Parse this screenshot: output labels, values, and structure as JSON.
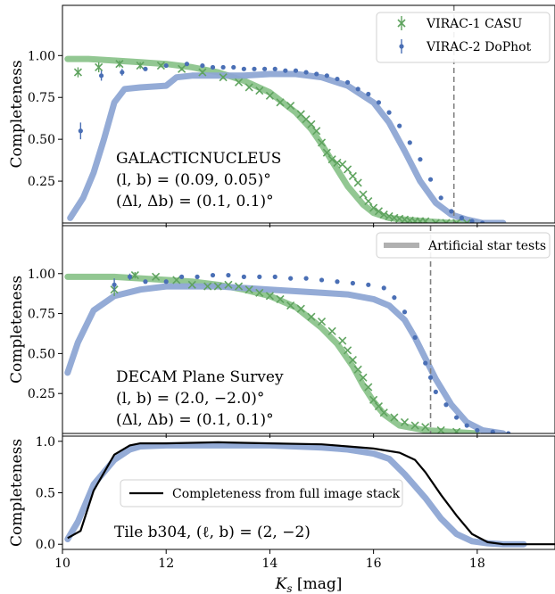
{
  "colors": {
    "casu": "#5fa35f",
    "dophot": "#4a6fb5",
    "ast_green": "#8cc48c",
    "ast_blue": "#8ea7d4",
    "stack": "#000000",
    "legend_gray": "#b0b0b0",
    "dashed_line": "#808080"
  },
  "x_axis": {
    "label_main": "K",
    "label_sub": "s",
    "label_unit": " [mag]",
    "ticks": [
      10,
      12,
      14,
      16,
      18
    ],
    "tick_labels": [
      "10",
      "12",
      "14",
      "16",
      "18"
    ],
    "range": [
      10,
      19.5
    ]
  },
  "chart_data": [
    {
      "type": "scatter",
      "ylabel": "Completeness",
      "ylim": [
        0,
        1.3
      ],
      "yticks": [
        0.25,
        0.5,
        0.75,
        1.0
      ],
      "ytick_labels": [
        "0.25",
        "0.50",
        "0.75",
        "1.00"
      ],
      "annotation": [
        "GALACTICNUCLEUS",
        "(l, b) = (0.09, 0.05)°",
        "(Δl, Δb) = (0.1, 0.1)°"
      ],
      "legend_position": "top-right",
      "legend": [
        {
          "label": "VIRAC-1 CASU",
          "marker": "x"
        },
        {
          "label": "VIRAC-2 DoPhot",
          "marker": "o"
        }
      ],
      "vline": 17.55,
      "series": [
        {
          "name": "VIRAC-1 CASU",
          "marker": "x",
          "x": [
            10.3,
            10.7,
            11.1,
            11.5,
            11.9,
            12.3,
            12.7,
            13.1,
            13.4,
            13.6,
            13.8,
            14.0,
            14.2,
            14.4,
            14.6,
            14.7,
            14.8,
            14.9,
            15.0,
            15.1,
            15.2,
            15.3,
            15.4,
            15.5,
            15.6,
            15.7,
            15.8,
            15.9,
            16.0,
            16.1,
            16.2,
            16.3,
            16.4,
            16.5,
            16.6,
            16.7,
            16.8,
            16.9,
            17.0,
            17.2,
            17.4,
            17.6,
            17.8
          ],
          "y": [
            0.9,
            0.93,
            0.95,
            0.94,
            0.94,
            0.92,
            0.9,
            0.87,
            0.84,
            0.81,
            0.79,
            0.76,
            0.72,
            0.7,
            0.65,
            0.62,
            0.59,
            0.55,
            0.48,
            0.42,
            0.38,
            0.36,
            0.35,
            0.32,
            0.28,
            0.24,
            0.17,
            0.13,
            0.09,
            0.07,
            0.05,
            0.04,
            0.03,
            0.025,
            0.02,
            0.015,
            0.01,
            0.01,
            0.01,
            0.0,
            0.0,
            0.0,
            0.0
          ],
          "yerr": [
            0.03,
            0.03,
            0.02,
            0.02,
            0.01,
            0.01,
            0.01,
            0.01,
            0,
            0,
            0,
            0,
            0,
            0,
            0,
            0,
            0,
            0,
            0,
            0,
            0,
            0,
            0,
            0,
            0,
            0,
            0,
            0,
            0,
            0,
            0,
            0,
            0,
            0,
            0,
            0,
            0,
            0,
            0,
            0,
            0,
            0,
            0
          ]
        },
        {
          "name": "VIRAC-2 DoPhot",
          "marker": "o",
          "x": [
            10.35,
            10.75,
            11.15,
            11.6,
            12.0,
            12.4,
            12.7,
            12.9,
            13.1,
            13.3,
            13.5,
            13.7,
            13.9,
            14.1,
            14.3,
            14.5,
            14.7,
            14.9,
            15.1,
            15.3,
            15.5,
            15.7,
            15.9,
            16.1,
            16.3,
            16.5,
            16.7,
            16.9,
            17.1,
            17.3,
            17.5,
            17.7,
            17.9,
            18.1
          ],
          "y": [
            0.55,
            0.88,
            0.9,
            0.92,
            0.94,
            0.95,
            0.94,
            0.93,
            0.93,
            0.93,
            0.92,
            0.92,
            0.92,
            0.92,
            0.91,
            0.91,
            0.9,
            0.89,
            0.88,
            0.86,
            0.84,
            0.8,
            0.77,
            0.72,
            0.66,
            0.58,
            0.48,
            0.38,
            0.26,
            0.15,
            0.07,
            0.03,
            0.01,
            0.0
          ],
          "yerr": [
            0.05,
            0.03,
            0.02,
            0.01,
            0.01,
            0,
            0,
            0,
            0,
            0,
            0,
            0,
            0,
            0,
            0,
            0,
            0,
            0,
            0,
            0,
            0,
            0,
            0,
            0,
            0,
            0,
            0,
            0,
            0,
            0,
            0,
            0,
            0,
            0
          ]
        }
      ],
      "ast_curves": [
        {
          "color_key": "ast_green",
          "x": [
            10.1,
            10.5,
            11.0,
            11.5,
            12.0,
            12.5,
            13.0,
            13.5,
            14.0,
            14.5,
            14.8,
            15.0,
            15.2,
            15.5,
            15.8,
            16.0,
            16.3,
            16.6,
            17.0,
            17.5,
            18.0
          ],
          "y": [
            0.98,
            0.98,
            0.97,
            0.96,
            0.95,
            0.93,
            0.9,
            0.85,
            0.78,
            0.66,
            0.56,
            0.47,
            0.37,
            0.22,
            0.11,
            0.06,
            0.03,
            0.02,
            0.01,
            0.0,
            0.0
          ]
        },
        {
          "color_key": "ast_blue",
          "x": [
            10.15,
            10.4,
            10.6,
            10.8,
            11.0,
            11.2,
            11.5,
            12.0,
            12.2,
            12.5,
            13.0,
            13.5,
            14.0,
            14.5,
            15.0,
            15.5,
            16.0,
            16.3,
            16.6,
            16.9,
            17.2,
            17.5,
            17.8,
            18.1,
            18.5
          ],
          "y": [
            0.03,
            0.15,
            0.3,
            0.5,
            0.72,
            0.8,
            0.81,
            0.82,
            0.87,
            0.88,
            0.88,
            0.88,
            0.89,
            0.89,
            0.87,
            0.82,
            0.72,
            0.6,
            0.43,
            0.25,
            0.12,
            0.05,
            0.02,
            0.0,
            0.0
          ]
        }
      ]
    },
    {
      "type": "scatter",
      "ylabel": "Completeness",
      "ylim": [
        0,
        1.3
      ],
      "yticks": [
        0.25,
        0.5,
        0.75,
        1.0
      ],
      "ytick_labels": [
        "0.25",
        "0.50",
        "0.75",
        "1.00"
      ],
      "annotation": [
        "DECAM Plane Survey",
        "(l, b) = (2.0, −2.0)°",
        "(Δl, Δb) = (0.1, 0.1)°"
      ],
      "legend_position": "top-right",
      "legend": [
        {
          "label": "Artificial star tests",
          "marker": "line"
        }
      ],
      "vline": 17.1,
      "series": [
        {
          "name": "VIRAC-1 CASU",
          "marker": "x",
          "x": [
            11.0,
            11.4,
            11.8,
            12.2,
            12.5,
            12.8,
            13.0,
            13.2,
            13.4,
            13.6,
            13.8,
            14.0,
            14.2,
            14.4,
            14.6,
            14.8,
            15.0,
            15.2,
            15.4,
            15.5,
            15.6,
            15.7,
            15.8,
            15.9,
            16.0,
            16.1,
            16.2,
            16.4,
            16.6,
            16.8,
            17.0,
            17.3,
            17.6
          ],
          "y": [
            0.9,
            0.99,
            0.98,
            0.96,
            0.93,
            0.92,
            0.92,
            0.93,
            0.92,
            0.9,
            0.88,
            0.86,
            0.84,
            0.8,
            0.78,
            0.73,
            0.7,
            0.64,
            0.58,
            0.52,
            0.46,
            0.4,
            0.35,
            0.29,
            0.21,
            0.17,
            0.13,
            0.1,
            0.07,
            0.05,
            0.04,
            0.02,
            0.01
          ],
          "yerr": [
            0.04,
            0.02,
            0.01,
            0,
            0,
            0,
            0,
            0,
            0,
            0,
            0,
            0,
            0,
            0,
            0,
            0,
            0,
            0,
            0,
            0,
            0,
            0,
            0,
            0,
            0,
            0,
            0,
            0,
            0,
            0,
            0,
            0,
            0
          ]
        },
        {
          "name": "VIRAC-2 DoPhot",
          "marker": "o",
          "x": [
            11.0,
            11.3,
            11.6,
            12.0,
            12.3,
            12.6,
            12.9,
            13.2,
            13.5,
            13.8,
            14.1,
            14.4,
            14.7,
            15.0,
            15.3,
            15.6,
            15.9,
            16.2,
            16.4,
            16.6,
            16.8,
            17.0,
            17.1,
            17.2,
            17.4,
            17.6,
            17.8,
            18.0,
            18.3,
            18.6
          ],
          "y": [
            0.93,
            0.98,
            0.95,
            0.95,
            0.98,
            0.98,
            0.99,
            0.99,
            0.98,
            0.98,
            0.98,
            0.97,
            0.97,
            0.96,
            0.95,
            0.94,
            0.93,
            0.91,
            0.85,
            0.76,
            0.6,
            0.44,
            0.35,
            0.26,
            0.18,
            0.1,
            0.05,
            0.02,
            0.01,
            0.0
          ],
          "yerr": [
            0.04,
            0.02,
            0.01,
            0,
            0,
            0,
            0,
            0,
            0,
            0,
            0,
            0,
            0,
            0,
            0,
            0,
            0,
            0,
            0,
            0,
            0,
            0,
            0,
            0,
            0,
            0,
            0,
            0,
            0,
            0
          ]
        }
      ],
      "ast_curves": [
        {
          "color_key": "ast_green",
          "x": [
            10.1,
            10.5,
            11.0,
            11.5,
            12.0,
            12.5,
            13.0,
            13.5,
            14.0,
            14.5,
            15.0,
            15.3,
            15.6,
            15.8,
            16.0,
            16.2,
            16.5,
            17.0,
            17.5,
            18.0
          ],
          "y": [
            0.98,
            0.98,
            0.98,
            0.97,
            0.96,
            0.95,
            0.93,
            0.9,
            0.86,
            0.79,
            0.66,
            0.56,
            0.42,
            0.3,
            0.2,
            0.12,
            0.05,
            0.02,
            0.01,
            0.0
          ]
        },
        {
          "color_key": "ast_blue",
          "x": [
            10.1,
            10.3,
            10.6,
            11.0,
            11.5,
            12.0,
            12.5,
            13.0,
            13.5,
            14.0,
            14.5,
            15.0,
            15.5,
            16.0,
            16.3,
            16.6,
            16.8,
            17.0,
            17.2,
            17.5,
            17.8,
            18.1,
            18.5
          ],
          "y": [
            0.38,
            0.57,
            0.77,
            0.86,
            0.9,
            0.92,
            0.92,
            0.92,
            0.91,
            0.9,
            0.89,
            0.88,
            0.87,
            0.84,
            0.8,
            0.71,
            0.6,
            0.47,
            0.34,
            0.18,
            0.07,
            0.02,
            0.0
          ]
        }
      ]
    },
    {
      "type": "line",
      "ylabel": "Completeness",
      "ylim": [
        -0.05,
        1.05
      ],
      "yticks": [
        0.0,
        0.5,
        1.0
      ],
      "ytick_labels": [
        "0.0",
        "0.5",
        "1.0"
      ],
      "annotation": [
        "Tile b304, (ℓ, b) = (2, −2)"
      ],
      "legend_position": "center-left",
      "legend": [
        {
          "label": "Completeness from full image stack",
          "marker": "line"
        }
      ],
      "ast_curves": [
        {
          "color_key": "ast_blue",
          "x": [
            10.1,
            10.3,
            10.6,
            11.0,
            11.3,
            11.5,
            12.0,
            13.0,
            14.0,
            15.0,
            15.5,
            16.0,
            16.3,
            16.6,
            17.0,
            17.3,
            17.6,
            17.9,
            18.2,
            18.5,
            18.9
          ],
          "y": [
            0.05,
            0.22,
            0.58,
            0.82,
            0.92,
            0.95,
            0.96,
            0.96,
            0.96,
            0.94,
            0.92,
            0.88,
            0.83,
            0.68,
            0.45,
            0.25,
            0.1,
            0.03,
            0.01,
            0.0,
            0.0
          ]
        }
      ],
      "series": [
        {
          "name": "Completeness from full image stack",
          "color_key": "stack",
          "x": [
            10.1,
            10.35,
            10.6,
            11.0,
            11.3,
            11.5,
            12.0,
            13.0,
            14.0,
            15.0,
            15.5,
            16.0,
            16.5,
            16.8,
            17.0,
            17.3,
            17.6,
            17.9,
            18.2,
            18.5,
            19.0,
            19.5
          ],
          "y": [
            0.06,
            0.13,
            0.52,
            0.87,
            0.96,
            0.98,
            0.98,
            0.99,
            0.98,
            0.97,
            0.95,
            0.93,
            0.89,
            0.82,
            0.7,
            0.48,
            0.28,
            0.1,
            0.02,
            0.0,
            0.0,
            0.0
          ]
        }
      ]
    }
  ]
}
